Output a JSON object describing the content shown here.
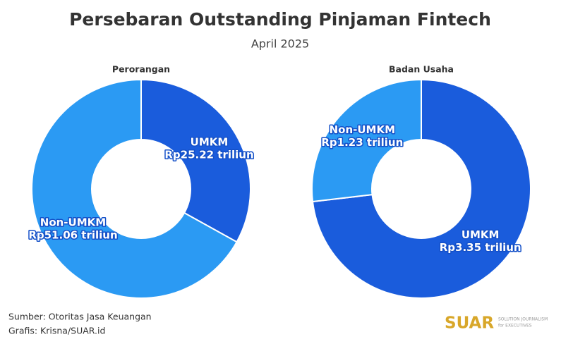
{
  "title": "Persebaran Outstanding Pinjaman Fintech",
  "subtitle": "April 2025",
  "chart_data": [
    {
      "type": "donut",
      "title": "Perorangan",
      "categories": [
        "UMKM",
        "Non-UMKM"
      ],
      "values": [
        25.22,
        51.06
      ],
      "value_labels": [
        "Rp25.22 triliun",
        "Rp51.06 triliun"
      ],
      "colors": [
        "#1a5cdc",
        "#2b9af3"
      ]
    },
    {
      "type": "donut",
      "title": "Badan Usaha",
      "categories": [
        "UMKM",
        "Non-UMKM"
      ],
      "values": [
        3.35,
        1.23
      ],
      "value_labels": [
        "Rp3.35 triliun",
        "Rp1.23 triliun"
      ],
      "colors": [
        "#1a5cdc",
        "#2b9af3"
      ]
    }
  ],
  "footer": {
    "source": "Sumber: Otoritas Jasa Keuangan",
    "credit": "Grafis: Krisna/SUAR.id"
  },
  "logo": {
    "name": "SUAR",
    "tagline_1": "SOLUTION JOURNALISM",
    "tagline_2": "for EXECUTIVES"
  }
}
